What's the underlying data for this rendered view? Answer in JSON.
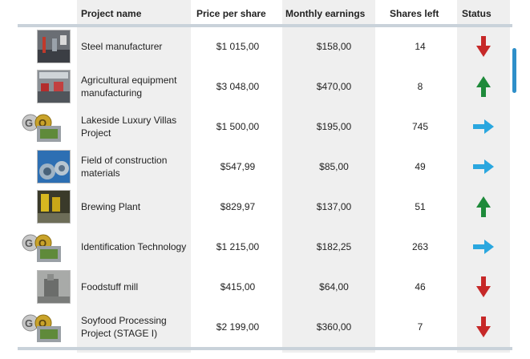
{
  "headers": {
    "project_name": "Project name",
    "price_per_share": "Price per share",
    "monthly_earnings": "Monthly earnings",
    "shares_left": "Shares left",
    "status": "Status"
  },
  "colors": {
    "up": "#1e8a3a",
    "down": "#c62828",
    "flat": "#2aa7df",
    "accent": "#2f8fc9"
  },
  "rows": [
    {
      "name": "Steel manufacturer",
      "price": "$1 015,00",
      "earnings": "$158,00",
      "shares": "14",
      "status": "down",
      "thumb": "steel-photo"
    },
    {
      "name": "Agricultural equipment manufacturing",
      "price": "$3 048,00",
      "earnings": "$470,00",
      "shares": "8",
      "status": "up",
      "thumb": "factory-photo"
    },
    {
      "name": "Lakeside Luxury Villas Project",
      "price": "$1 500,00",
      "earnings": "$195,00",
      "shares": "745",
      "status": "flat",
      "thumb": "goon-logo"
    },
    {
      "name": "Field of construction materials",
      "price": "$547,99",
      "earnings": "$85,00",
      "shares": "49",
      "status": "flat",
      "thumb": "pipes-photo"
    },
    {
      "name": "Brewing Plant",
      "price": "$829,97",
      "earnings": "$137,00",
      "shares": "51",
      "status": "up",
      "thumb": "brewery-photo"
    },
    {
      "name": "Identification Technology",
      "price": "$1 215,00",
      "earnings": "$182,25",
      "shares": "263",
      "status": "flat",
      "thumb": "goon-logo"
    },
    {
      "name": "Foodstuff mill",
      "price": "$415,00",
      "earnings": "$64,00",
      "shares": "46",
      "status": "down",
      "thumb": "mill-photo"
    },
    {
      "name": "Soyfood Processing Project (STAGE I)",
      "price": "$2 199,00",
      "earnings": "$360,00",
      "shares": "7",
      "status": "down",
      "thumb": "goon-logo"
    }
  ]
}
